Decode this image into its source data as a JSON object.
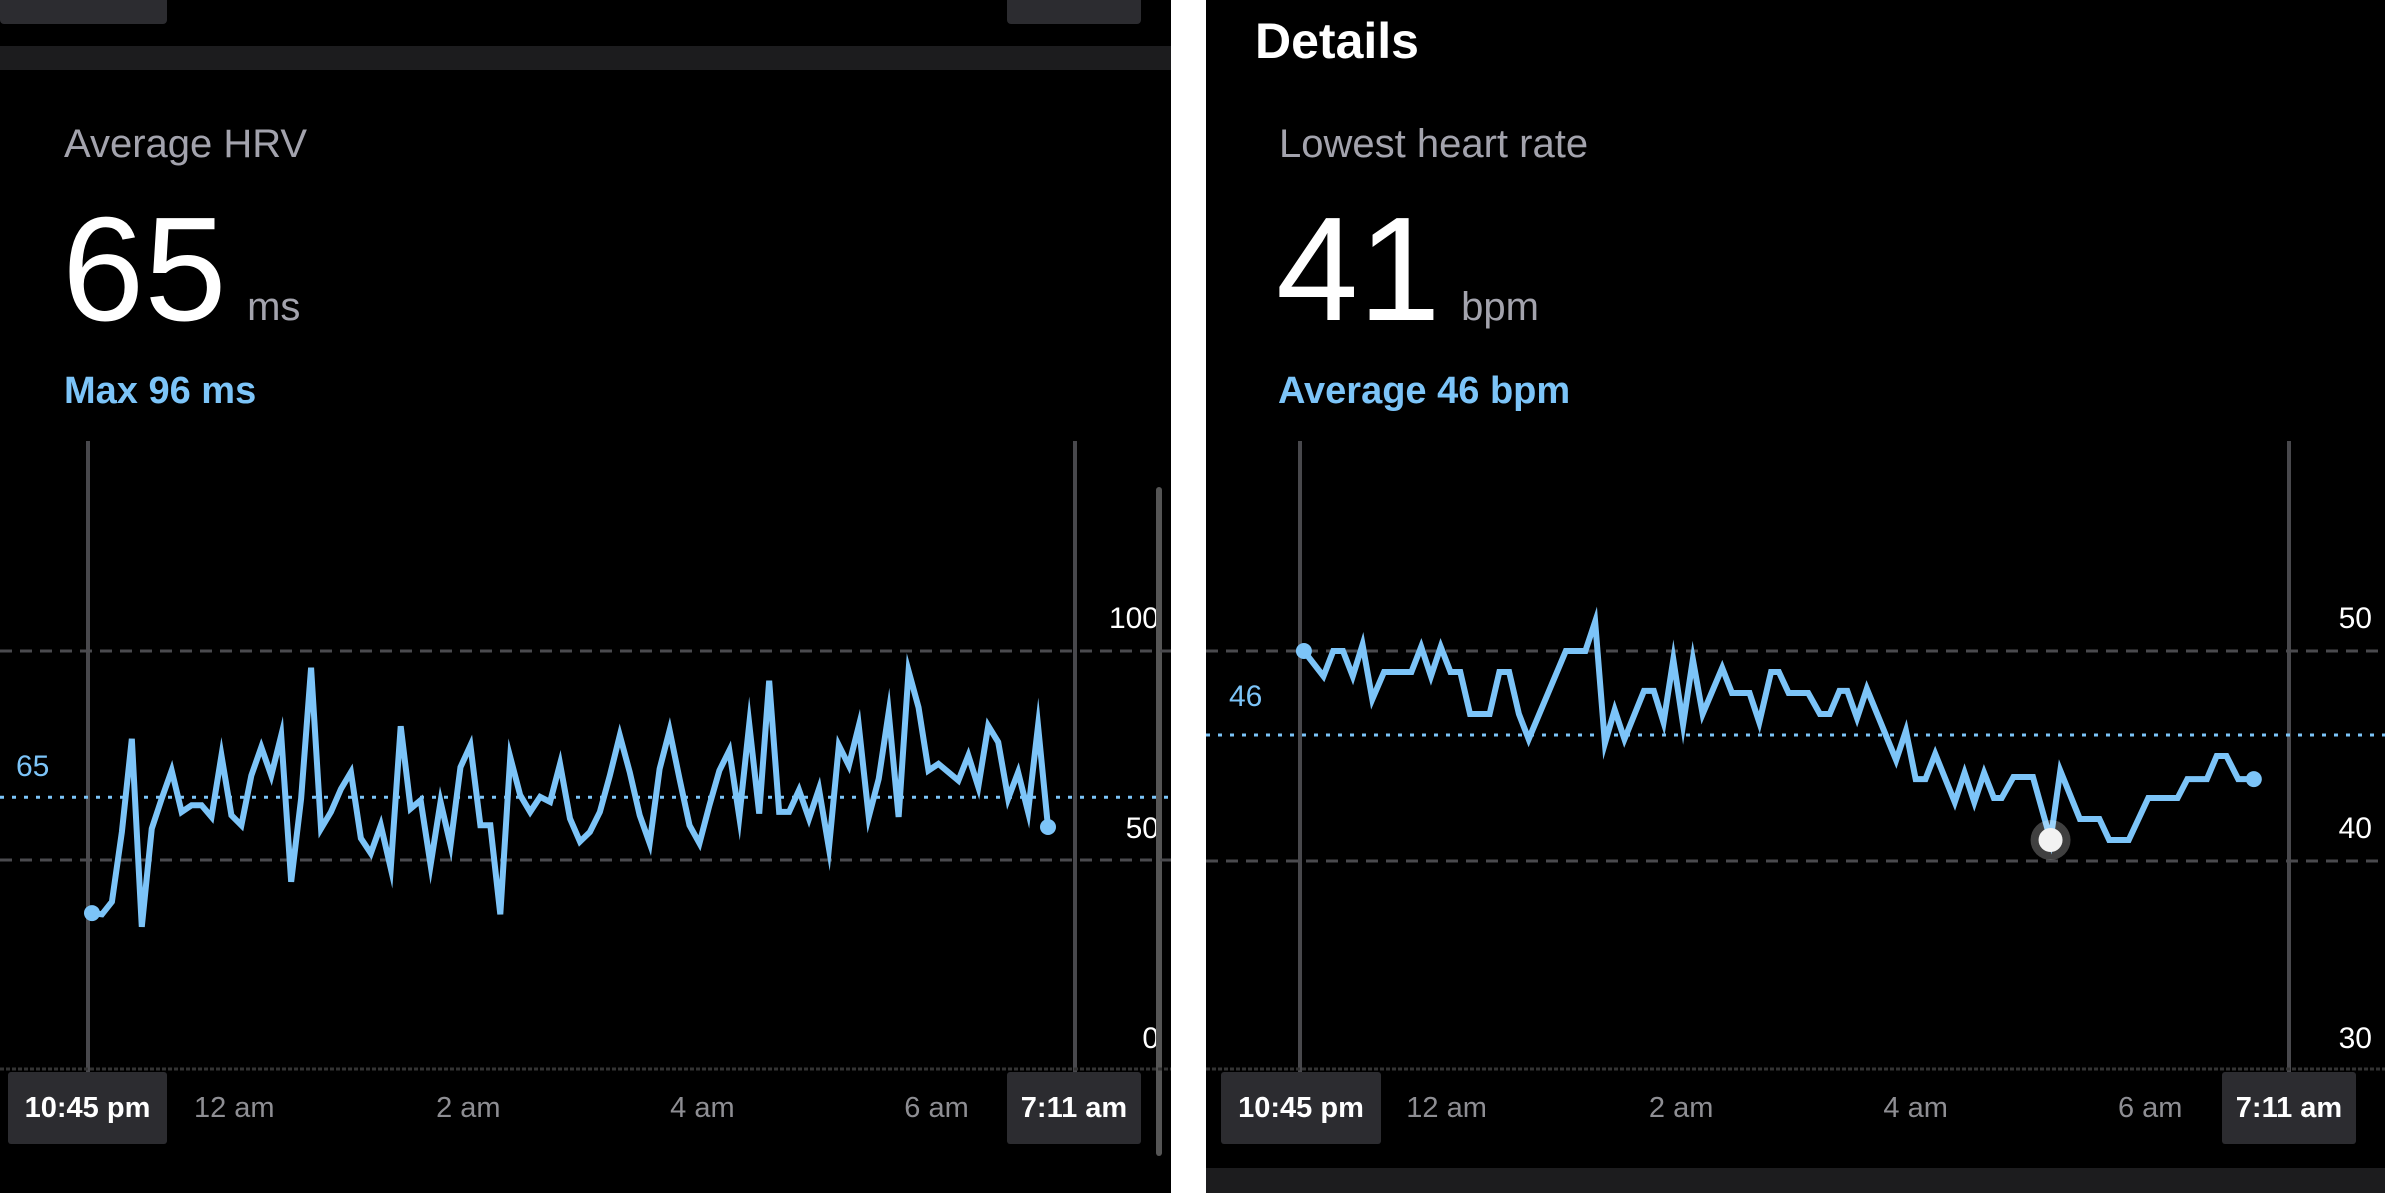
{
  "left": {
    "title": "Average HRV",
    "value": "65",
    "unit": "ms",
    "sub": "Max 96 ms",
    "avg_label": "65",
    "x_start": "10:45 pm",
    "x_end": "7:11 am",
    "ticks": [
      "12 am",
      "2 am",
      "4 am",
      "6 am"
    ]
  },
  "right": {
    "heading": "Details",
    "title": "Lowest heart rate",
    "value": "41",
    "unit": "bpm",
    "sub": "Average 46 bpm",
    "avg_label": "46",
    "x_start": "10:45 pm",
    "x_end": "7:11 am",
    "ticks": [
      "12 am",
      "2 am",
      "4 am",
      "6 am"
    ]
  },
  "colors": {
    "line": "#7cc4f8",
    "grid": "#4a4a4e",
    "box": "#2c2c30",
    "label": "#a3a3ad"
  },
  "chart_data": [
    {
      "type": "line",
      "title": "Average HRV",
      "ylim": [
        0,
        100
      ],
      "yticks": [
        "0",
        "50",
        "100"
      ],
      "dashed_gridlines": [
        50,
        100
      ],
      "average_line": 65,
      "xlim": [
        "10:45 pm",
        "7:11 am"
      ],
      "xticks": [
        "12 am",
        "2 am",
        "4 am",
        "6 am"
      ],
      "values": [
        37.3,
        37,
        40,
        56.7,
        79,
        34,
        57.5,
        64.7,
        71.4,
        61.5,
        63.1,
        63.1,
        60.3,
        75,
        60.7,
        58.3,
        70.2,
        77,
        70.2,
        79.8,
        44.8,
        64.7,
        96,
        57.5,
        61.5,
        67,
        71,
        55.2,
        51.6,
        58.3,
        48,
        82,
        62.3,
        64.3,
        48.8,
        63.9,
        53.6,
        72.2,
        77.4,
        58.3,
        58.3,
        37,
        74.6,
        65.5,
        61.5,
        65.1,
        63.9,
        73,
        59.9,
        54.4,
        56.7,
        61.5,
        70.2,
        79.8,
        71,
        60.7,
        54,
        71.8,
        81,
        69.4,
        58.3,
        54,
        63.1,
        71.4,
        76.2,
        60.3,
        82.5,
        61.1,
        92.9,
        61.5,
        61.5,
        66.7,
        59.9,
        67,
        52.8,
        77.4,
        72.6,
        82.1,
        60.3,
        69.4,
        85.3,
        60.3,
        95.2,
        86.5,
        71.4,
        73,
        71,
        69,
        75,
        67.5,
        82.1,
        78.2,
        64.7,
        71,
        61.5,
        82.1,
        57.9
      ]
    },
    {
      "type": "line",
      "title": "Lowest heart rate",
      "ylim": [
        30,
        50
      ],
      "yticks": [
        "30",
        "40",
        "50"
      ],
      "dashed_gridlines": [
        40,
        50
      ],
      "average_line": 46,
      "lowest_marker": {
        "x": "05:09",
        "y": 41
      },
      "xlim": [
        "10:45 pm",
        "7:11 am"
      ],
      "xticks": [
        "12 am",
        "2 am",
        "4 am",
        "6 am"
      ],
      "x": [
        "22:47",
        "22:57",
        "23:02",
        "23:07",
        "23:12",
        "23:17",
        "23:22",
        "23:28",
        "23:42",
        "23:47",
        "23:52",
        "23:57",
        "00:02",
        "00:07",
        "00:12",
        "00:22",
        "00:27",
        "00:32",
        "00:37",
        "00:42",
        "01:01",
        "01:11",
        "01:16",
        "01:21",
        "01:26",
        "01:31",
        "01:41",
        "01:46",
        "01:51",
        "01:56",
        "02:01",
        "02:06",
        "02:11",
        "02:21",
        "02:26",
        "02:35",
        "02:40",
        "02:46",
        "02:50",
        "02:55",
        "03:05",
        "03:11",
        "03:16",
        "03:21",
        "03:25",
        "03:30",
        "03:35",
        "03:50",
        "03:55",
        "04:00",
        "04:05",
        "04:10",
        "04:20",
        "04:25",
        "04:30",
        "04:35",
        "04:40",
        "04:44",
        "04:50",
        "05:00",
        "05:09",
        "05:14",
        "05:24",
        "05:34",
        "05:39",
        "05:49",
        "05:59",
        "06:14",
        "06:19",
        "06:29",
        "06:34",
        "06:39",
        "06:45",
        "06:53"
      ],
      "y": [
        50,
        48.8,
        50,
        50,
        48.8,
        50.3,
        47.7,
        49,
        49,
        50.2,
        48.8,
        50.2,
        49,
        49,
        47,
        47,
        49,
        49,
        47,
        45.8,
        50,
        50,
        51.4,
        45.6,
        47.2,
        45.8,
        48.1,
        48.1,
        46.6,
        49.6,
        46.5,
        49.6,
        47,
        49.2,
        48,
        48,
        46.6,
        49,
        49,
        48,
        48,
        47,
        47,
        48.1,
        48.1,
        46.8,
        48.2,
        44.8,
        46.2,
        43.9,
        43.9,
        45.1,
        42.8,
        44.2,
        42.8,
        44.2,
        43,
        43,
        44,
        44,
        41,
        44.3,
        42,
        42,
        41,
        41,
        43,
        43,
        43.9,
        43.9,
        45,
        45,
        43.9,
        43.9
      ]
    }
  ]
}
